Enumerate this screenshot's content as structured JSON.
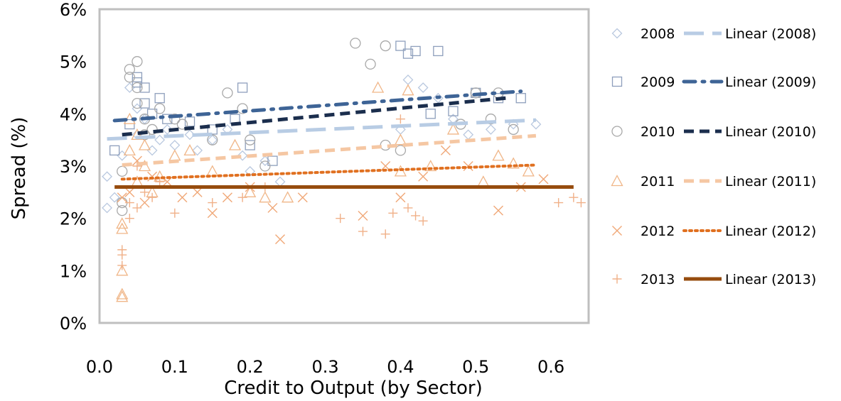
{
  "chart_data": {
    "type": "scatter",
    "xlabel": "Credit to Output (by Sector)",
    "ylabel": "Spread (%)",
    "xlim": [
      0.0,
      0.65
    ],
    "ylim": [
      0,
      6
    ],
    "x_ticks": [
      "0.0",
      "0.1",
      "0.2",
      "0.3",
      "0.4",
      "0.5",
      "0.6"
    ],
    "x_tick_values": [
      0.0,
      0.1,
      0.2,
      0.3,
      0.4,
      0.5,
      0.6
    ],
    "y_ticks": [
      "0%",
      "1%",
      "2%",
      "3%",
      "4%",
      "5%",
      "6%"
    ],
    "y_tick_values": [
      0,
      1,
      2,
      3,
      4,
      5,
      6
    ],
    "grid": false,
    "legend_position": "right",
    "series": [
      {
        "name": "2008",
        "marker": "diamond",
        "color": "#b9c8df",
        "trend_label": "Linear (2008)",
        "trend_style": "long-dash",
        "trend_color": "#b8cce4",
        "trend": [
          [
            0.01,
            3.52
          ],
          [
            0.58,
            3.88
          ]
        ],
        "points": [
          [
            0.01,
            2.8
          ],
          [
            0.01,
            2.2
          ],
          [
            0.02,
            2.4
          ],
          [
            0.03,
            3.2
          ],
          [
            0.04,
            4.5
          ],
          [
            0.05,
            4.1
          ],
          [
            0.05,
            3.6
          ],
          [
            0.06,
            3.9
          ],
          [
            0.07,
            3.3
          ],
          [
            0.08,
            3.5
          ],
          [
            0.09,
            3.7
          ],
          [
            0.1,
            3.4
          ],
          [
            0.12,
            3.6
          ],
          [
            0.13,
            3.3
          ],
          [
            0.15,
            3.5
          ],
          [
            0.17,
            3.7
          ],
          [
            0.19,
            3.2
          ],
          [
            0.2,
            2.9
          ],
          [
            0.22,
            3.1
          ],
          [
            0.24,
            2.7
          ],
          [
            0.4,
            3.7
          ],
          [
            0.41,
            4.65
          ],
          [
            0.43,
            4.5
          ],
          [
            0.45,
            4.3
          ],
          [
            0.47,
            3.9
          ],
          [
            0.49,
            3.6
          ],
          [
            0.52,
            3.7
          ],
          [
            0.55,
            3.8
          ],
          [
            0.58,
            3.8
          ]
        ]
      },
      {
        "name": "2009",
        "marker": "square",
        "color": "#8e9fbc",
        "trend_label": "Linear (2009)",
        "trend_style": "dash-dot",
        "trend_color": "#3e6496",
        "trend": [
          [
            0.02,
            3.87
          ],
          [
            0.56,
            4.43
          ]
        ],
        "points": [
          [
            0.02,
            3.3
          ],
          [
            0.04,
            3.8
          ],
          [
            0.05,
            4.7
          ],
          [
            0.05,
            4.6
          ],
          [
            0.06,
            4.5
          ],
          [
            0.06,
            4.2
          ],
          [
            0.07,
            4.0
          ],
          [
            0.08,
            4.3
          ],
          [
            0.09,
            3.9
          ],
          [
            0.12,
            3.85
          ],
          [
            0.15,
            3.7
          ],
          [
            0.18,
            3.9
          ],
          [
            0.19,
            4.5
          ],
          [
            0.2,
            3.4
          ],
          [
            0.23,
            3.1
          ],
          [
            0.4,
            5.3
          ],
          [
            0.41,
            5.15
          ],
          [
            0.42,
            5.2
          ],
          [
            0.45,
            5.2
          ],
          [
            0.44,
            4.0
          ],
          [
            0.47,
            4.05
          ],
          [
            0.5,
            4.4
          ],
          [
            0.53,
            4.3
          ],
          [
            0.56,
            4.3
          ]
        ]
      },
      {
        "name": "2010",
        "marker": "circle",
        "color": "#a8a8a8",
        "trend_label": "Linear (2010)",
        "trend_style": "dash",
        "trend_color": "#1b2e4d",
        "trend": [
          [
            0.03,
            3.6
          ],
          [
            0.54,
            4.3
          ]
        ],
        "points": [
          [
            0.03,
            2.3
          ],
          [
            0.03,
            2.15
          ],
          [
            0.03,
            2.9
          ],
          [
            0.04,
            4.85
          ],
          [
            0.04,
            4.7
          ],
          [
            0.05,
            5.0
          ],
          [
            0.05,
            4.5
          ],
          [
            0.05,
            4.2
          ],
          [
            0.06,
            3.9
          ],
          [
            0.06,
            3.6
          ],
          [
            0.07,
            3.7
          ],
          [
            0.08,
            4.1
          ],
          [
            0.1,
            3.9
          ],
          [
            0.11,
            3.8
          ],
          [
            0.15,
            3.5
          ],
          [
            0.17,
            4.4
          ],
          [
            0.19,
            4.1
          ],
          [
            0.2,
            3.5
          ],
          [
            0.22,
            3.0
          ],
          [
            0.34,
            5.35
          ],
          [
            0.36,
            4.95
          ],
          [
            0.38,
            5.3
          ],
          [
            0.38,
            3.4
          ],
          [
            0.4,
            3.3
          ],
          [
            0.48,
            3.8
          ],
          [
            0.5,
            4.4
          ],
          [
            0.53,
            4.4
          ],
          [
            0.52,
            3.9
          ],
          [
            0.55,
            3.7
          ]
        ]
      },
      {
        "name": "2011",
        "marker": "triangle",
        "color": "#f0b688",
        "trend_label": "Linear (2011)",
        "trend_style": "dash",
        "trend_color": "#f5c7a3",
        "trend": [
          [
            0.03,
            3.02
          ],
          [
            0.58,
            3.58
          ]
        ],
        "points": [
          [
            0.03,
            0.5
          ],
          [
            0.03,
            0.55
          ],
          [
            0.03,
            1.0
          ],
          [
            0.03,
            1.8
          ],
          [
            0.03,
            1.9
          ],
          [
            0.04,
            3.3
          ],
          [
            0.04,
            3.9
          ],
          [
            0.05,
            3.6
          ],
          [
            0.05,
            2.7
          ],
          [
            0.06,
            3.4
          ],
          [
            0.06,
            3.0
          ],
          [
            0.07,
            2.5
          ],
          [
            0.08,
            2.8
          ],
          [
            0.1,
            3.2
          ],
          [
            0.12,
            3.3
          ],
          [
            0.15,
            2.9
          ],
          [
            0.18,
            3.4
          ],
          [
            0.2,
            2.5
          ],
          [
            0.22,
            2.4
          ],
          [
            0.25,
            2.4
          ],
          [
            0.37,
            4.5
          ],
          [
            0.4,
            3.5
          ],
          [
            0.41,
            4.45
          ],
          [
            0.4,
            2.9
          ],
          [
            0.44,
            3.0
          ],
          [
            0.47,
            3.7
          ],
          [
            0.51,
            2.7
          ],
          [
            0.53,
            3.2
          ],
          [
            0.55,
            3.05
          ],
          [
            0.57,
            2.9
          ]
        ]
      },
      {
        "name": "2012",
        "marker": "x",
        "color": "#f0a878",
        "trend_label": "Linear (2012)",
        "trend_style": "dot",
        "trend_color": "#e07020",
        "trend": [
          [
            0.03,
            2.75
          ],
          [
            0.58,
            3.02
          ]
        ],
        "points": [
          [
            0.03,
            2.4
          ],
          [
            0.04,
            2.5
          ],
          [
            0.05,
            3.1
          ],
          [
            0.06,
            2.3
          ],
          [
            0.07,
            2.8
          ],
          [
            0.09,
            2.7
          ],
          [
            0.11,
            2.4
          ],
          [
            0.13,
            2.5
          ],
          [
            0.15,
            2.1
          ],
          [
            0.17,
            2.4
          ],
          [
            0.2,
            2.6
          ],
          [
            0.23,
            2.2
          ],
          [
            0.24,
            1.6
          ],
          [
            0.27,
            2.4
          ],
          [
            0.35,
            2.05
          ],
          [
            0.38,
            3.0
          ],
          [
            0.4,
            2.4
          ],
          [
            0.43,
            2.8
          ],
          [
            0.46,
            3.3
          ],
          [
            0.49,
            3.0
          ],
          [
            0.53,
            2.15
          ],
          [
            0.56,
            2.6
          ],
          [
            0.59,
            2.75
          ]
        ]
      },
      {
        "name": "2013",
        "marker": "plus",
        "color": "#f0b088",
        "trend_label": "Linear (2013)",
        "trend_style": "solid",
        "trend_color": "#964c0e",
        "trend": [
          [
            0.02,
            2.6
          ],
          [
            0.63,
            2.6
          ]
        ],
        "points": [
          [
            0.03,
            1.1
          ],
          [
            0.03,
            1.3
          ],
          [
            0.03,
            1.4
          ],
          [
            0.04,
            2.0
          ],
          [
            0.04,
            2.3
          ],
          [
            0.05,
            2.2
          ],
          [
            0.05,
            3.0
          ],
          [
            0.06,
            2.5
          ],
          [
            0.07,
            2.4
          ],
          [
            0.08,
            2.7
          ],
          [
            0.1,
            2.1
          ],
          [
            0.15,
            2.3
          ],
          [
            0.19,
            2.4
          ],
          [
            0.22,
            2.6
          ],
          [
            0.32,
            2.0
          ],
          [
            0.35,
            1.75
          ],
          [
            0.38,
            1.7
          ],
          [
            0.39,
            2.1
          ],
          [
            0.41,
            2.2
          ],
          [
            0.42,
            2.05
          ],
          [
            0.4,
            3.9
          ],
          [
            0.43,
            1.95
          ],
          [
            0.61,
            2.3
          ],
          [
            0.63,
            2.4
          ],
          [
            0.64,
            2.3
          ]
        ]
      }
    ]
  }
}
